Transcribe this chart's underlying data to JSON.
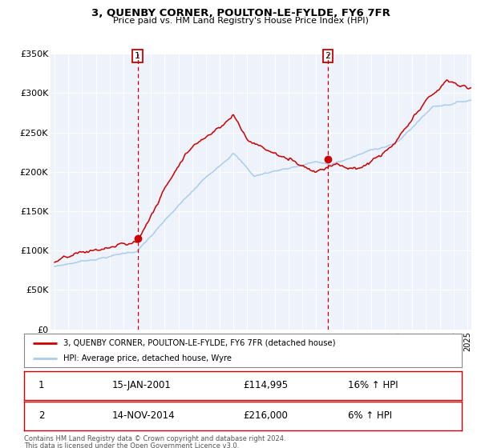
{
  "title": "3, QUENBY CORNER, POULTON-LE-FYLDE, FY6 7FR",
  "subtitle": "Price paid vs. HM Land Registry's House Price Index (HPI)",
  "legend_label_red": "3, QUENBY CORNER, POULTON-LE-FYLDE, FY6 7FR (detached house)",
  "legend_label_blue": "HPI: Average price, detached house, Wyre",
  "footnote1": "Contains HM Land Registry data © Crown copyright and database right 2024.",
  "footnote2": "This data is licensed under the Open Government Licence v3.0.",
  "purchase1_date": "15-JAN-2001",
  "purchase1_price": 114995,
  "purchase1_hpi": "16% ↑ HPI",
  "purchase2_date": "14-NOV-2014",
  "purchase2_price": 216000,
  "purchase2_hpi": "6% ↑ HPI",
  "red_color": "#cc0000",
  "blue_color": "#aaccee",
  "marker_color": "#cc0000",
  "dashed_line_color": "#cc0000",
  "background_chart": "#eef2fb",
  "background_fig": "#ffffff",
  "ylim": [
    0,
    350000
  ],
  "yticks": [
    0,
    50000,
    100000,
    150000,
    200000,
    250000,
    300000,
    350000
  ],
  "ytick_labels": [
    "£0",
    "£50K",
    "£100K",
    "£150K",
    "£200K",
    "£250K",
    "£300K",
    "£350K"
  ],
  "purchase1_year": 2001.04,
  "purchase2_year": 2014.87,
  "xlim_left": 1994.7,
  "xlim_right": 2025.3
}
